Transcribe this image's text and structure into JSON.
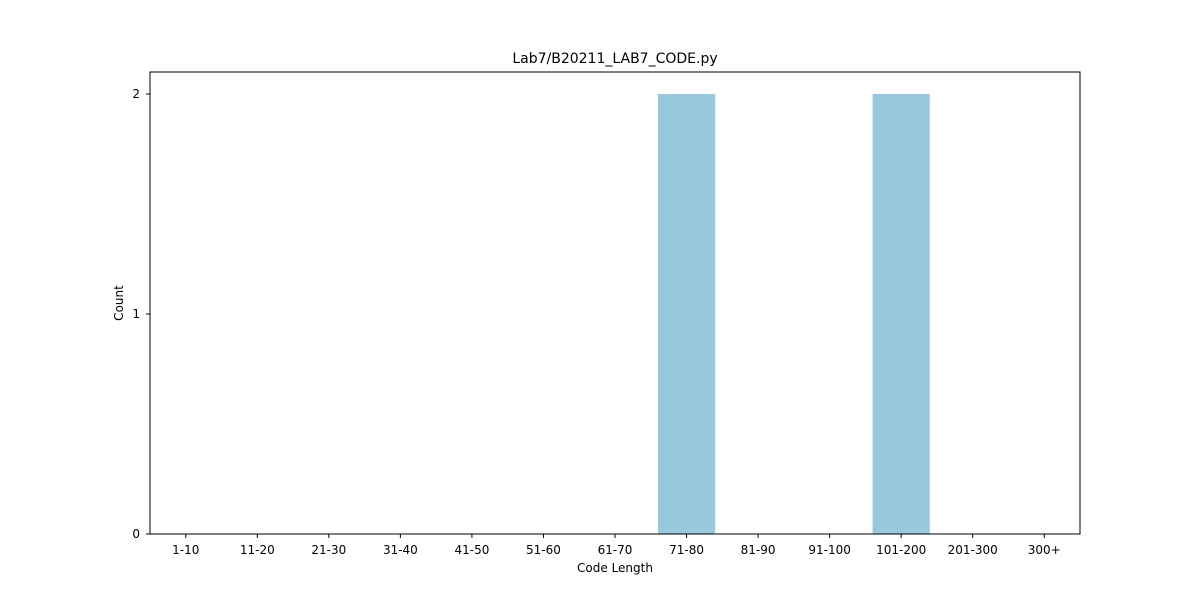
{
  "chart_data": {
    "type": "bar",
    "title": "Lab7/B20211_LAB7_CODE.py",
    "xlabel": "Code Length",
    "ylabel": "Count",
    "categories": [
      "1-10",
      "11-20",
      "21-30",
      "31-40",
      "41-50",
      "51-60",
      "61-70",
      "71-80",
      "81-90",
      "91-100",
      "101-200",
      "201-300",
      "300+"
    ],
    "values": [
      0,
      0,
      0,
      0,
      0,
      0,
      0,
      2,
      0,
      0,
      2,
      0,
      0
    ],
    "yticks": [
      0,
      1,
      2
    ],
    "ylim": [
      0,
      2.1
    ],
    "grid": false,
    "legend": "none",
    "bar_color": "#96c9dc"
  }
}
